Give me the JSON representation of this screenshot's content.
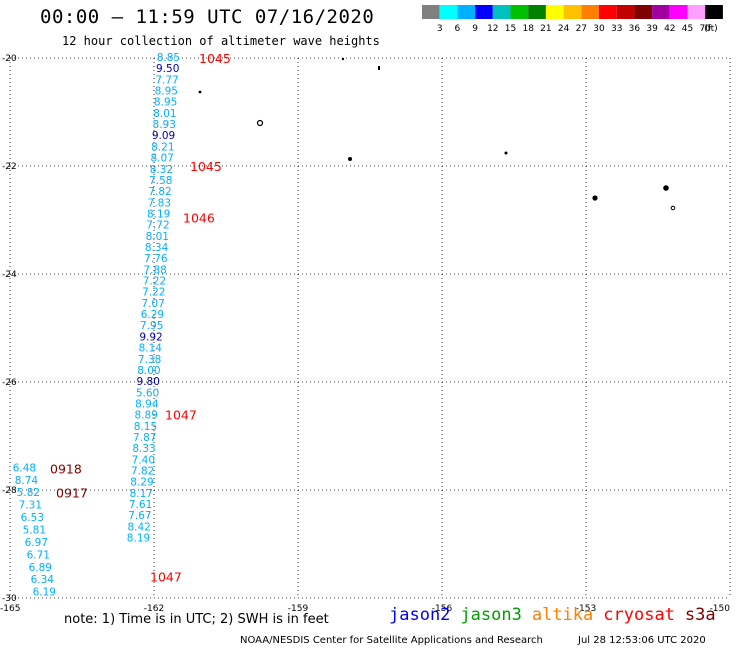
{
  "title": "00:00 — 11:59 UTC 07/16/2020",
  "subtitle": "12 hour collection of altimeter wave heights",
  "color_scale": {
    "labels": [
      "3",
      "6",
      "9",
      "12",
      "15",
      "18",
      "21",
      "24",
      "27",
      "30",
      "33",
      "36",
      "39",
      "42",
      "45",
      "70",
      "(ft)"
    ],
    "colors": [
      "#808080",
      "#00ffff",
      "#00b0ff",
      "#0000ff",
      "#00c0c0",
      "#00c000",
      "#008000",
      "#ffff00",
      "#ffc000",
      "#ff8000",
      "#ff0000",
      "#c00000",
      "#800000",
      "#a000a0",
      "#ff00ff",
      "#ffa0ff",
      "#000000"
    ]
  },
  "legend": {
    "jason2": "jason2",
    "jason3": "jason3",
    "altika": "altika",
    "cryosat": "cryosat",
    "s3a": "s3a"
  },
  "legend_colors": {
    "jason2": "#0000ff",
    "jason3": "#00a000",
    "altika": "#ff8000",
    "cryosat": "#ff0000",
    "s3a": "#800000"
  },
  "note": "note: 1) Time is in UTC; 2) SWH is in feet",
  "credit": "NOAA/NESDIS Center for Satellite Applications and Research",
  "credit_date": "Jul 28 12:53:06 UTC 2020",
  "chart_data": {
    "type": "scatter",
    "xlim": [
      -165,
      -150
    ],
    "ylim": [
      -30,
      -20
    ],
    "x_ticks": [
      "-165",
      "-162",
      "-159",
      "-156",
      "-153",
      "-150"
    ],
    "y_ticks": [
      "-20",
      "-22",
      "-24",
      "-26",
      "-28",
      "-30"
    ],
    "grid": true,
    "series": [
      {
        "name": "altika",
        "color": "#00b0ff",
        "lon": -161.7,
        "lat_start": -20.0,
        "lat_end": -28.9,
        "values": [
          "8.85",
          "9.50",
          "7.77",
          "8.95",
          "8.95",
          "8.01",
          "8.93",
          "9.09",
          "8.21",
          "8.07",
          "8.32",
          "7.58",
          "7.82",
          "7.83",
          "8.19",
          "7.72",
          "8.01",
          "8.34",
          "7.76",
          "7.88",
          "7.22",
          "7.22",
          "7.07",
          "6.29",
          "7.95",
          "9.92",
          "8.14",
          "7.38",
          "8.00",
          "9.80",
          "5.60",
          "8.94",
          "8.89",
          "8.15",
          "7.87",
          "8.33",
          "7.40",
          "7.82",
          "8.29",
          "8.17",
          "7.61",
          "7.67",
          "8.42",
          "8.19"
        ]
      },
      {
        "name": "cryosat",
        "color": "#00b0ff",
        "lon": -164.7,
        "lat_start": -27.6,
        "lat_end": -29.9,
        "values": [
          "6.48",
          "8.74",
          "5.82",
          "7.31",
          "6.53",
          "5.81",
          "6.97",
          "6.71",
          "6.89",
          "6.34",
          "6.19"
        ]
      }
    ],
    "time_labels": [
      {
        "text": "1045",
        "lat": -20.0,
        "color": "#ff0000"
      },
      {
        "text": "1045",
        "lat": -22.0,
        "color": "#ff0000"
      },
      {
        "text": "1046",
        "lat": -22.95,
        "color": "#ff0000"
      },
      {
        "text": "1047",
        "lat": -26.6,
        "color": "#ff0000"
      },
      {
        "text": "1047",
        "lat": -29.6,
        "color": "#ff0000"
      },
      {
        "text": "0918",
        "lat": -27.6,
        "color": "#800000"
      },
      {
        "text": "0917",
        "lat": -28.05,
        "color": "#800000"
      }
    ]
  }
}
